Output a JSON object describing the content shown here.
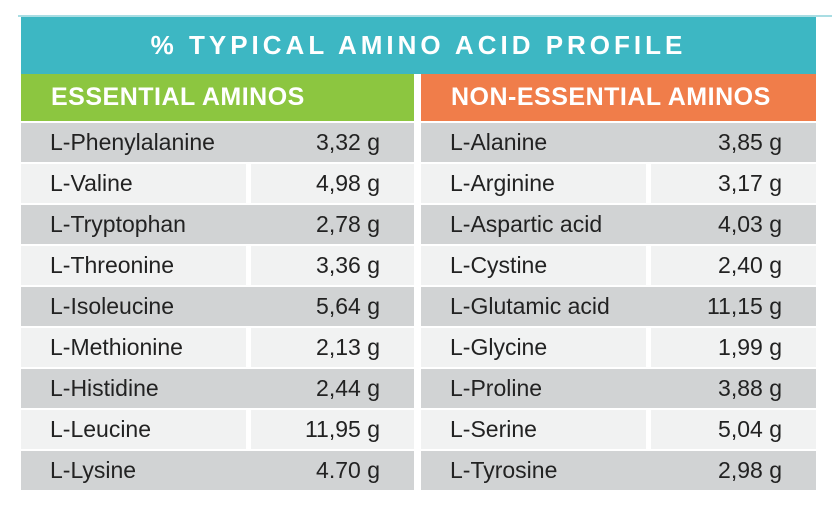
{
  "title": {
    "text": "% TYPICAL AMINO ACID PROFILE"
  },
  "colors": {
    "title_bg": "#3db7c3",
    "essential_header_bg": "#8cc640",
    "nonessential_header_bg": "#f07d4a",
    "row_dark": "#d1d3d4",
    "row_light": "#f1f2f2",
    "header_text": "#ffffff",
    "row_text": "#222222",
    "page_bg": "#ffffff"
  },
  "columns": [
    {
      "header": "ESSENTIAL AMINOS",
      "rows": [
        {
          "name": "L-Phenylalanine",
          "value": "3,32 g"
        },
        {
          "name": "L-Valine",
          "value": "4,98 g"
        },
        {
          "name": "L-Tryptophan",
          "value": "2,78 g"
        },
        {
          "name": "L-Threonine",
          "value": "3,36 g"
        },
        {
          "name": "L-Isoleucine",
          "value": "5,64 g"
        },
        {
          "name": "L-Methionine",
          "value": "2,13 g"
        },
        {
          "name": "L-Histidine",
          "value": "2,44 g"
        },
        {
          "name": "L-Leucine",
          "value": "11,95 g"
        },
        {
          "name": "L-Lysine",
          "value": "4.70 g"
        }
      ]
    },
    {
      "header": "NON-ESSENTIAL AMINOS",
      "rows": [
        {
          "name": "L-Alanine",
          "value": "3,85 g"
        },
        {
          "name": "L-Arginine",
          "value": "3,17 g"
        },
        {
          "name": "L-Aspartic acid",
          "value": "4,03 g"
        },
        {
          "name": "L-Cystine",
          "value": "2,40 g"
        },
        {
          "name": "L-Glutamic acid",
          "value": "11,15 g"
        },
        {
          "name": "L-Glycine",
          "value": "1,99 g"
        },
        {
          "name": "L-Proline",
          "value": "3,88 g"
        },
        {
          "name": "L-Serine",
          "value": "5,04 g"
        },
        {
          "name": "L-Tyrosine",
          "value": "2,98 g"
        }
      ]
    }
  ]
}
